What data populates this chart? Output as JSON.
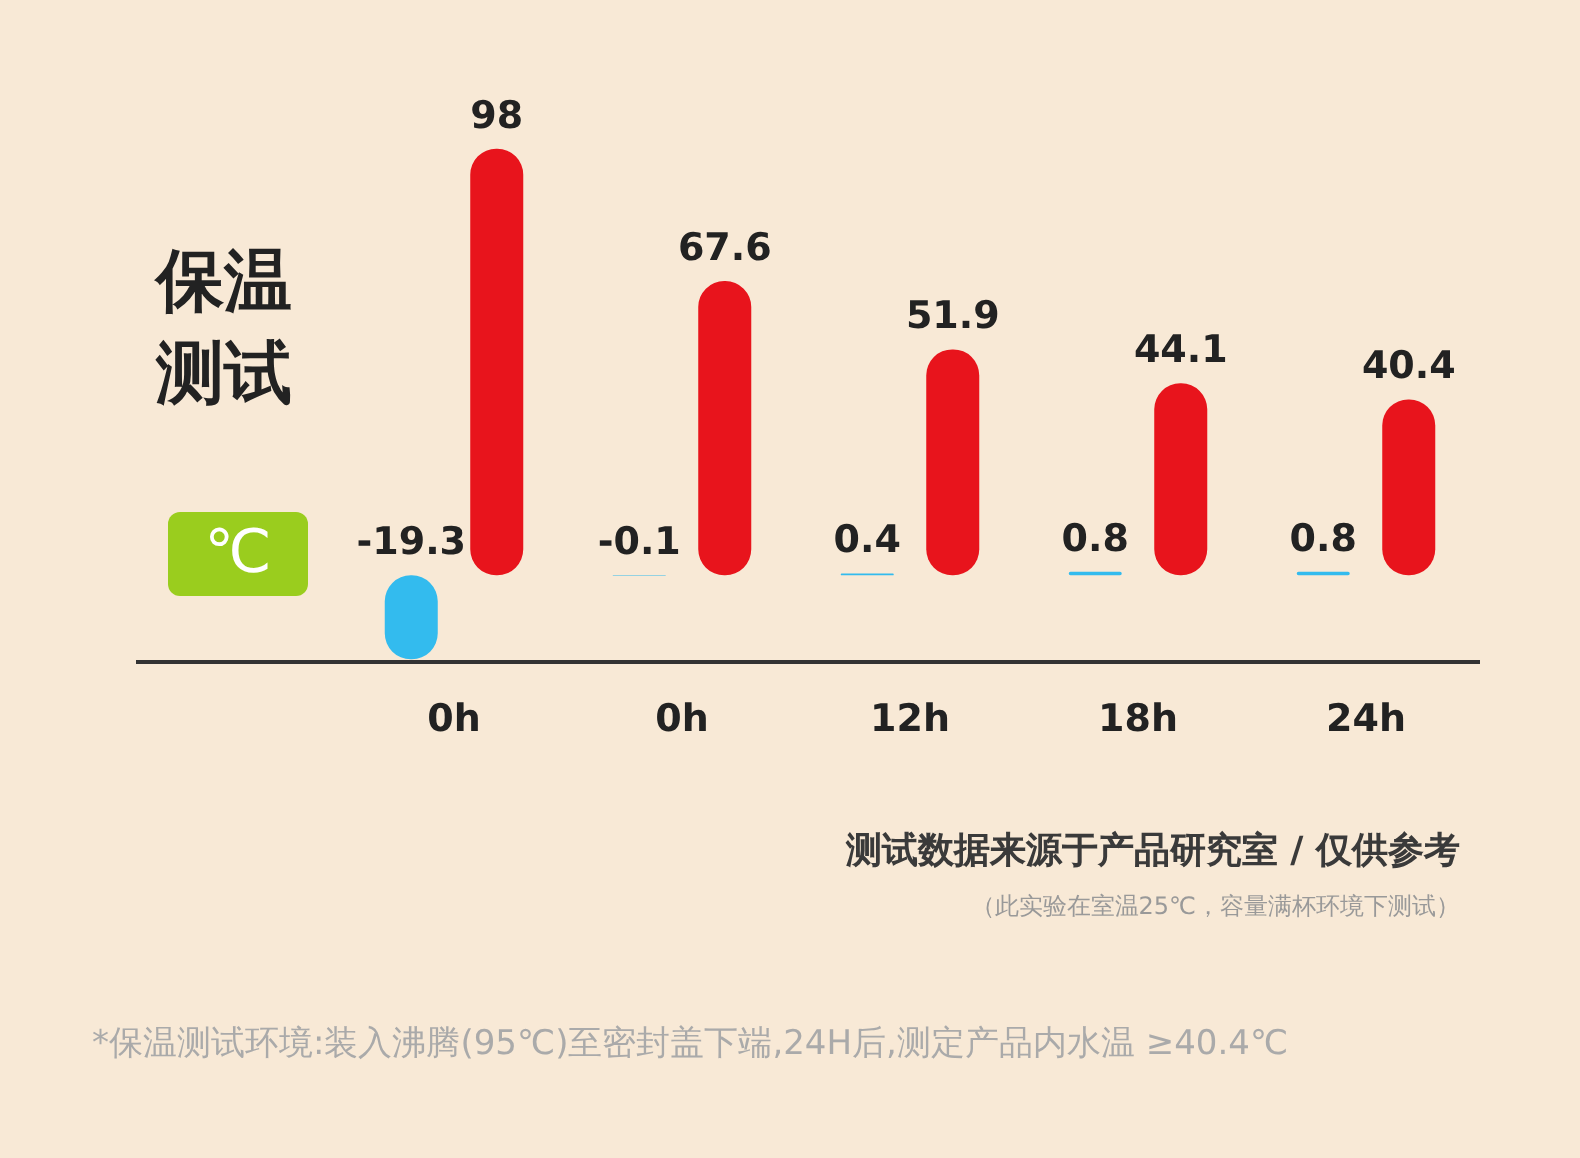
{
  "chart_data": {
    "type": "bar",
    "title": "保温测试",
    "ylabel": "℃",
    "categories": [
      "0h",
      "0h",
      "12h",
      "18h",
      "24h"
    ],
    "series": [
      {
        "color": "#33bbee",
        "values": [
          -19.3,
          -0.1,
          0.4,
          0.8,
          0.8
        ]
      },
      {
        "color": "#e8141c",
        "values": [
          98,
          67.6,
          51.9,
          44.1,
          40.4
        ]
      }
    ],
    "data_labels": true,
    "grid": false,
    "legend": false,
    "tick_labels": "x",
    "annotations": [
      "测试数据来源于产品研究室 / 仅供参考",
      "（此实验在室温25℃，容量满杯环境下测试）",
      "*保温测试环境:装入沸腾(95℃)至密封盖下端,24H后,测定产品内水温 ≥40.4℃"
    ]
  }
}
